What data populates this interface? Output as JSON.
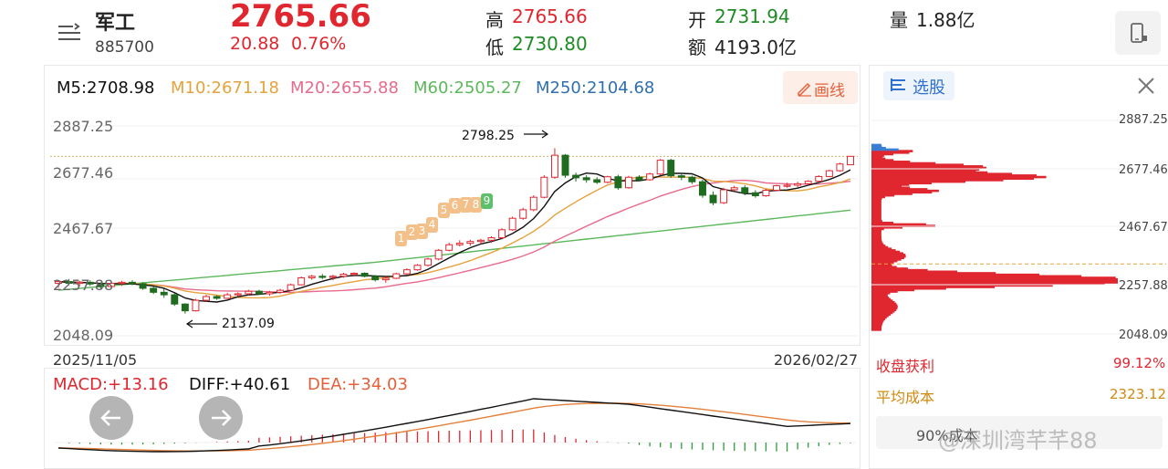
{
  "header": {
    "menu_icon": "menu-icon",
    "name": "军工",
    "code": "885700",
    "price": "2765.66",
    "change": "20.88",
    "change_pct": "0.76%",
    "high_label": "高",
    "high_value": "2765.66",
    "low_label": "低",
    "low_value": "2730.80",
    "open_label": "开",
    "open_value": "2731.94",
    "amount_label": "额",
    "amount_value": "4193.0亿",
    "volume_label": "量",
    "volume_value": "1.88亿",
    "device_icon": "phone-rotate-icon"
  },
  "ma_bar": {
    "m5": "M5:2708.98",
    "m10": "M10:2671.18",
    "m20": "M20:2655.88",
    "m60": "M60:2505.27",
    "m250": "M250:2104.68",
    "draw_button": "画线",
    "draw_icon": "pencil-icon"
  },
  "chart": {
    "y_ticks": [
      "2887.25",
      "2677.46",
      "2467.67",
      "2257.88",
      "2048.09"
    ],
    "start_date": "2025/11/05",
    "end_date": "2026/02/27",
    "high_annotation": "2798.25",
    "low_annotation": "2137.09",
    "seq_labels": [
      "1",
      "2",
      "3",
      "4",
      "5",
      "6",
      "7",
      "8",
      "9"
    ]
  },
  "macd_bar": {
    "macd": "MACD:+13.16",
    "diff": "DIFF:+40.61",
    "dea": "DEA:+34.03",
    "prev_icon": "arrow-left-icon",
    "next_icon": "arrow-right-icon"
  },
  "right_panel": {
    "select_label": "选股",
    "select_icon": "list-icon",
    "close_icon": "close-icon",
    "ticks": [
      "2887.25",
      "2677.46",
      "2467.67",
      "2257.88",
      "2048.09"
    ],
    "profit_label": "收盘获利",
    "profit_value": "99.12%",
    "avg_cost_label": "平均成本",
    "avg_cost_value": "2323.12",
    "bottom_partial": "90%成本"
  },
  "watermark": "@深圳湾芊芊88",
  "colors": {
    "up": "#e0262f",
    "down": "#1f6b1f",
    "m5": "#111111",
    "m10": "#e6a23c",
    "m20": "#e86a8c",
    "m60": "#5cb85c",
    "m250": "#2f6fb0"
  },
  "chart_data": {
    "type": "candlestick",
    "title": "军工 885700",
    "x_range": [
      "2025/11/05",
      "2026/02/27"
    ],
    "ylim": [
      2048.09,
      2887.25
    ],
    "candles": [
      {
        "o": 2258,
        "h": 2270,
        "l": 2240,
        "c": 2265
      },
      {
        "o": 2265,
        "h": 2275,
        "l": 2250,
        "c": 2258
      },
      {
        "o": 2258,
        "h": 2268,
        "l": 2245,
        "c": 2262
      },
      {
        "o": 2262,
        "h": 2270,
        "l": 2248,
        "c": 2255
      },
      {
        "o": 2255,
        "h": 2262,
        "l": 2235,
        "c": 2245
      },
      {
        "o": 2245,
        "h": 2260,
        "l": 2240,
        "c": 2258
      },
      {
        "o": 2258,
        "h": 2268,
        "l": 2248,
        "c": 2262
      },
      {
        "o": 2262,
        "h": 2270,
        "l": 2250,
        "c": 2256
      },
      {
        "o": 2256,
        "h": 2262,
        "l": 2232,
        "c": 2238
      },
      {
        "o": 2238,
        "h": 2246,
        "l": 2215,
        "c": 2222
      },
      {
        "o": 2222,
        "h": 2236,
        "l": 2200,
        "c": 2212
      },
      {
        "o": 2212,
        "h": 2218,
        "l": 2168,
        "c": 2175
      },
      {
        "o": 2175,
        "h": 2178,
        "l": 2137,
        "c": 2148
      },
      {
        "o": 2148,
        "h": 2196,
        "l": 2145,
        "c": 2190
      },
      {
        "o": 2190,
        "h": 2212,
        "l": 2185,
        "c": 2205
      },
      {
        "o": 2205,
        "h": 2210,
        "l": 2192,
        "c": 2198
      },
      {
        "o": 2198,
        "h": 2220,
        "l": 2195,
        "c": 2212
      },
      {
        "o": 2212,
        "h": 2222,
        "l": 2205,
        "c": 2216
      },
      {
        "o": 2216,
        "h": 2232,
        "l": 2210,
        "c": 2226
      },
      {
        "o": 2226,
        "h": 2232,
        "l": 2212,
        "c": 2216
      },
      {
        "o": 2216,
        "h": 2228,
        "l": 2208,
        "c": 2222
      },
      {
        "o": 2222,
        "h": 2236,
        "l": 2215,
        "c": 2230
      },
      {
        "o": 2230,
        "h": 2256,
        "l": 2228,
        "c": 2252
      },
      {
        "o": 2252,
        "h": 2285,
        "l": 2250,
        "c": 2280
      },
      {
        "o": 2280,
        "h": 2292,
        "l": 2272,
        "c": 2286
      },
      {
        "o": 2286,
        "h": 2295,
        "l": 2275,
        "c": 2282
      },
      {
        "o": 2282,
        "h": 2292,
        "l": 2270,
        "c": 2286
      },
      {
        "o": 2286,
        "h": 2300,
        "l": 2280,
        "c": 2294
      },
      {
        "o": 2294,
        "h": 2302,
        "l": 2286,
        "c": 2298
      },
      {
        "o": 2298,
        "h": 2302,
        "l": 2282,
        "c": 2286
      },
      {
        "o": 2286,
        "h": 2290,
        "l": 2265,
        "c": 2272
      },
      {
        "o": 2272,
        "h": 2285,
        "l": 2260,
        "c": 2278
      },
      {
        "o": 2278,
        "h": 2300,
        "l": 2275,
        "c": 2296
      },
      {
        "o": 2296,
        "h": 2318,
        "l": 2292,
        "c": 2312
      },
      {
        "o": 2312,
        "h": 2335,
        "l": 2308,
        "c": 2330
      },
      {
        "o": 2330,
        "h": 2360,
        "l": 2325,
        "c": 2355
      },
      {
        "o": 2355,
        "h": 2395,
        "l": 2350,
        "c": 2390
      },
      {
        "o": 2390,
        "h": 2420,
        "l": 2386,
        "c": 2412
      },
      {
        "o": 2412,
        "h": 2430,
        "l": 2405,
        "c": 2418
      },
      {
        "o": 2418,
        "h": 2432,
        "l": 2408,
        "c": 2425
      },
      {
        "o": 2425,
        "h": 2436,
        "l": 2415,
        "c": 2430
      },
      {
        "o": 2430,
        "h": 2446,
        "l": 2420,
        "c": 2440
      },
      {
        "o": 2440,
        "h": 2478,
        "l": 2436,
        "c": 2472
      },
      {
        "o": 2472,
        "h": 2525,
        "l": 2468,
        "c": 2518
      },
      {
        "o": 2518,
        "h": 2560,
        "l": 2512,
        "c": 2552
      },
      {
        "o": 2552,
        "h": 2610,
        "l": 2546,
        "c": 2602
      },
      {
        "o": 2602,
        "h": 2690,
        "l": 2598,
        "c": 2682
      },
      {
        "o": 2682,
        "h": 2798.25,
        "l": 2676,
        "c": 2770
      },
      {
        "o": 2770,
        "h": 2775,
        "l": 2680,
        "c": 2690
      },
      {
        "o": 2690,
        "h": 2700,
        "l": 2665,
        "c": 2680
      },
      {
        "o": 2680,
        "h": 2690,
        "l": 2660,
        "c": 2672
      },
      {
        "o": 2672,
        "h": 2682,
        "l": 2655,
        "c": 2662
      },
      {
        "o": 2662,
        "h": 2688,
        "l": 2658,
        "c": 2684
      },
      {
        "o": 2684,
        "h": 2692,
        "l": 2632,
        "c": 2640
      },
      {
        "o": 2640,
        "h": 2688,
        "l": 2636,
        "c": 2682
      },
      {
        "o": 2682,
        "h": 2690,
        "l": 2665,
        "c": 2672
      },
      {
        "o": 2672,
        "h": 2700,
        "l": 2668,
        "c": 2695
      },
      {
        "o": 2695,
        "h": 2755,
        "l": 2690,
        "c": 2750
      },
      {
        "o": 2750,
        "h": 2756,
        "l": 2680,
        "c": 2688
      },
      {
        "o": 2688,
        "h": 2694,
        "l": 2670,
        "c": 2682
      },
      {
        "o": 2682,
        "h": 2688,
        "l": 2655,
        "c": 2664
      },
      {
        "o": 2664,
        "h": 2672,
        "l": 2600,
        "c": 2610
      },
      {
        "o": 2610,
        "h": 2625,
        "l": 2570,
        "c": 2580
      },
      {
        "o": 2580,
        "h": 2640,
        "l": 2575,
        "c": 2632
      },
      {
        "o": 2632,
        "h": 2648,
        "l": 2625,
        "c": 2640
      },
      {
        "o": 2640,
        "h": 2650,
        "l": 2610,
        "c": 2620
      },
      {
        "o": 2620,
        "h": 2630,
        "l": 2600,
        "c": 2608
      },
      {
        "o": 2608,
        "h": 2636,
        "l": 2604,
        "c": 2630
      },
      {
        "o": 2630,
        "h": 2652,
        "l": 2626,
        "c": 2648
      },
      {
        "o": 2648,
        "h": 2660,
        "l": 2640,
        "c": 2650
      },
      {
        "o": 2650,
        "h": 2664,
        "l": 2642,
        "c": 2656
      },
      {
        "o": 2656,
        "h": 2670,
        "l": 2650,
        "c": 2666
      },
      {
        "o": 2666,
        "h": 2690,
        "l": 2662,
        "c": 2685
      },
      {
        "o": 2685,
        "h": 2712,
        "l": 2682,
        "c": 2708
      },
      {
        "o": 2708,
        "h": 2740,
        "l": 2704,
        "c": 2735
      },
      {
        "o": 2731.94,
        "h": 2765.66,
        "l": 2730.8,
        "c": 2765.66
      }
    ]
  }
}
